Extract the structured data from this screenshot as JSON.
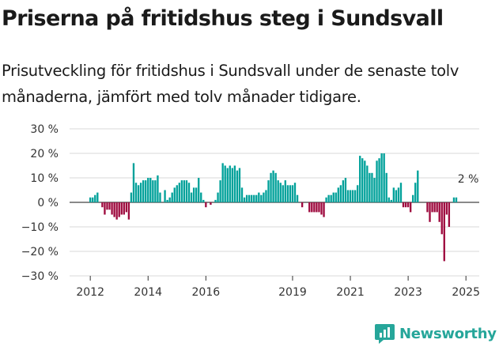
{
  "title": "Priserna på fritidshus steg i Sundsvall",
  "subtitle": "Prisutveckling för fritidshus i Sundsvall under de senaste tolv månaderna, jämfört med tolv månader tidigare.",
  "colors": {
    "positive": "#00a19a",
    "negative": "#9e0a3e",
    "brand": "#26a69a"
  },
  "brand": {
    "name": "Newsworthy",
    "icon": "chart-logo-icon"
  },
  "chart_data": {
    "type": "bar",
    "title": "",
    "xlabel": "",
    "ylabel": "",
    "ylim": [
      -30,
      30
    ],
    "y_ticks": [
      30,
      20,
      10,
      0,
      -10,
      -20,
      -30
    ],
    "y_tick_labels": [
      "30 %",
      "20 %",
      "10 %",
      "0 %",
      "−10 %",
      "−20 %",
      "−30 %"
    ],
    "x_ticks": [
      {
        "label": "2012",
        "month_index": 0
      },
      {
        "label": "2014",
        "month_index": 24
      },
      {
        "label": "2016",
        "month_index": 48
      },
      {
        "label": "2019",
        "month_index": 84
      },
      {
        "label": "2021",
        "month_index": 108
      },
      {
        "label": "2023",
        "month_index": 132
      },
      {
        "label": "2025",
        "month_index": 156
      }
    ],
    "start_period": "2012-01",
    "annotation": {
      "text": "2 %",
      "month_index": 157
    },
    "grid": true,
    "legend": "none",
    "values": [
      2,
      2,
      3,
      4,
      null,
      -2,
      -5,
      -3,
      -3,
      -5,
      -6,
      -7,
      -6,
      -5,
      -5,
      -4,
      -7,
      4,
      16,
      8,
      7,
      8,
      9,
      9,
      10,
      10,
      9,
      9,
      11,
      4,
      null,
      5,
      1,
      2,
      4,
      6,
      7,
      8,
      9,
      9,
      9,
      8,
      4,
      6,
      6,
      10,
      4,
      1,
      -2,
      null,
      -1,
      null,
      1,
      4,
      9,
      16,
      15,
      14,
      15,
      14,
      15,
      13,
      14,
      6,
      2,
      3,
      3,
      3,
      3,
      3,
      4,
      3,
      4,
      5,
      9,
      12,
      13,
      12,
      9,
      8,
      7,
      9,
      7,
      7,
      7,
      8,
      3,
      null,
      -2,
      null,
      null,
      -4,
      -4,
      -4,
      -4,
      -4,
      -5,
      -6,
      2,
      3,
      3,
      4,
      4,
      6,
      7,
      9,
      10,
      5,
      5,
      5,
      5,
      7,
      19,
      18,
      17,
      15,
      12,
      12,
      10,
      17,
      18,
      20,
      20,
      12,
      2,
      1,
      6,
      5,
      6,
      8,
      -2,
      -2,
      -2,
      -4,
      3,
      8,
      13,
      null,
      null,
      null,
      -4,
      -8,
      -4,
      -4,
      -4,
      -8,
      -13,
      -24,
      -5,
      -10,
      null,
      2,
      2
    ]
  }
}
